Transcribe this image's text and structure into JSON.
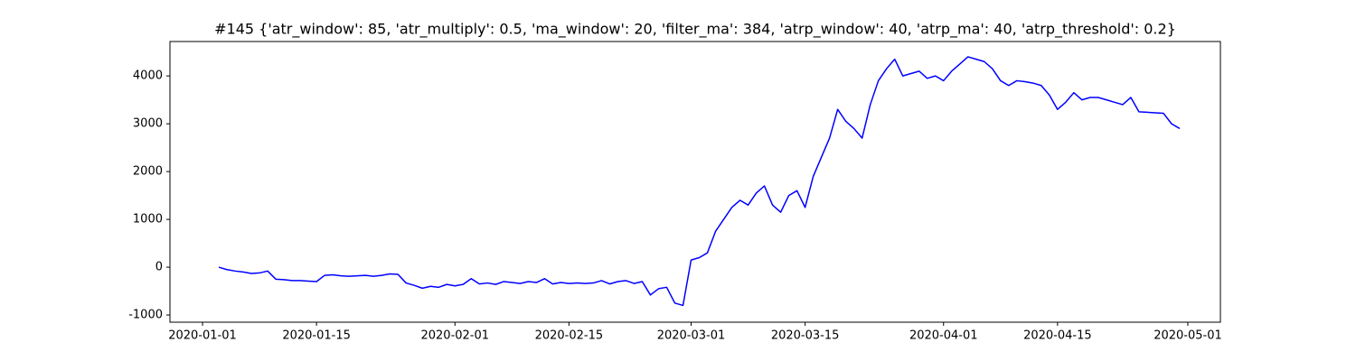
{
  "chart_data": {
    "type": "line",
    "title": "#145 {'atr_window': 85, 'atr_multiply': 0.5, 'ma_window': 20, 'filter_ma': 384, 'atrp_window': 40, 'atrp_ma': 40, 'atrp_threshold': 0.2}",
    "x": [
      "2020-01-03",
      "2020-01-04",
      "2020-01-05",
      "2020-01-06",
      "2020-01-07",
      "2020-01-08",
      "2020-01-09",
      "2020-01-10",
      "2020-01-11",
      "2020-01-12",
      "2020-01-13",
      "2020-01-14",
      "2020-01-15",
      "2020-01-16",
      "2020-01-17",
      "2020-01-18",
      "2020-01-19",
      "2020-01-20",
      "2020-01-21",
      "2020-01-22",
      "2020-01-23",
      "2020-01-24",
      "2020-01-25",
      "2020-01-26",
      "2020-01-27",
      "2020-01-28",
      "2020-01-29",
      "2020-01-30",
      "2020-01-31",
      "2020-02-01",
      "2020-02-02",
      "2020-02-03",
      "2020-02-04",
      "2020-02-05",
      "2020-02-06",
      "2020-02-07",
      "2020-02-08",
      "2020-02-09",
      "2020-02-10",
      "2020-02-11",
      "2020-02-12",
      "2020-02-13",
      "2020-02-14",
      "2020-02-15",
      "2020-02-16",
      "2020-02-17",
      "2020-02-18",
      "2020-02-19",
      "2020-02-20",
      "2020-02-21",
      "2020-02-22",
      "2020-02-23",
      "2020-02-24",
      "2020-02-25",
      "2020-02-26",
      "2020-02-27",
      "2020-02-28",
      "2020-02-29",
      "2020-03-01",
      "2020-03-02",
      "2020-03-03",
      "2020-03-04",
      "2020-03-05",
      "2020-03-06",
      "2020-03-07",
      "2020-03-08",
      "2020-03-09",
      "2020-03-10",
      "2020-03-11",
      "2020-03-12",
      "2020-03-13",
      "2020-03-14",
      "2020-03-15",
      "2020-03-16",
      "2020-03-17",
      "2020-03-18",
      "2020-03-19",
      "2020-03-20",
      "2020-03-21",
      "2020-03-22",
      "2020-03-23",
      "2020-03-24",
      "2020-03-25",
      "2020-03-26",
      "2020-03-27",
      "2020-03-28",
      "2020-03-29",
      "2020-03-30",
      "2020-03-31",
      "2020-04-01",
      "2020-04-02",
      "2020-04-03",
      "2020-04-04",
      "2020-04-05",
      "2020-04-06",
      "2020-04-07",
      "2020-04-08",
      "2020-04-09",
      "2020-04-10",
      "2020-04-11",
      "2020-04-12",
      "2020-04-13",
      "2020-04-14",
      "2020-04-15",
      "2020-04-16",
      "2020-04-17",
      "2020-04-18",
      "2020-04-19",
      "2020-04-20",
      "2020-04-21",
      "2020-04-22",
      "2020-04-23",
      "2020-04-24",
      "2020-04-25",
      "2020-04-26",
      "2020-04-27",
      "2020-04-28",
      "2020-04-29",
      "2020-04-30"
    ],
    "series": [
      {
        "color": "#0000ff",
        "values": [
          0,
          -50,
          -80,
          -100,
          -130,
          -120,
          -80,
          -250,
          -260,
          -280,
          -280,
          -290,
          -300,
          -170,
          -160,
          -180,
          -190,
          -180,
          -170,
          -190,
          -170,
          -140,
          -150,
          -330,
          -380,
          -440,
          -400,
          -420,
          -360,
          -390,
          -360,
          -240,
          -350,
          -330,
          -360,
          -300,
          -320,
          -340,
          -300,
          -320,
          -240,
          -350,
          -320,
          -340,
          -330,
          -340,
          -330,
          -280,
          -350,
          -300,
          -280,
          -340,
          -300,
          -580,
          -450,
          -420,
          -750,
          -800,
          150,
          200,
          300,
          750,
          1000,
          1250,
          1400,
          1300,
          1550,
          1700,
          1300,
          1150,
          1500,
          1600,
          1250,
          1900,
          2300,
          2700,
          3300,
          3050,
          2900,
          2700,
          3400,
          3900,
          4150,
          4350,
          4000,
          4050,
          4100,
          3950,
          4000,
          3900,
          4100,
          4250,
          4400,
          4350,
          4300,
          4150,
          3900,
          3800,
          3900,
          3880,
          3850,
          3800,
          3600,
          3300,
          3450,
          3650,
          3500,
          3550,
          3550,
          3500,
          3450,
          3400,
          3550,
          3250,
          3240,
          3230,
          3220,
          3000,
          2900
        ]
      }
    ],
    "xlim": [
      "2019-12-28",
      "2020-05-05"
    ],
    "xticks": [
      "2020-01-01",
      "2020-01-15",
      "2020-02-01",
      "2020-02-15",
      "2020-03-01",
      "2020-03-15",
      "2020-04-01",
      "2020-04-15",
      "2020-05-01"
    ],
    "ylim": [
      -1150,
      4720
    ],
    "yticks": [
      -1000,
      0,
      1000,
      2000,
      3000,
      4000
    ]
  }
}
